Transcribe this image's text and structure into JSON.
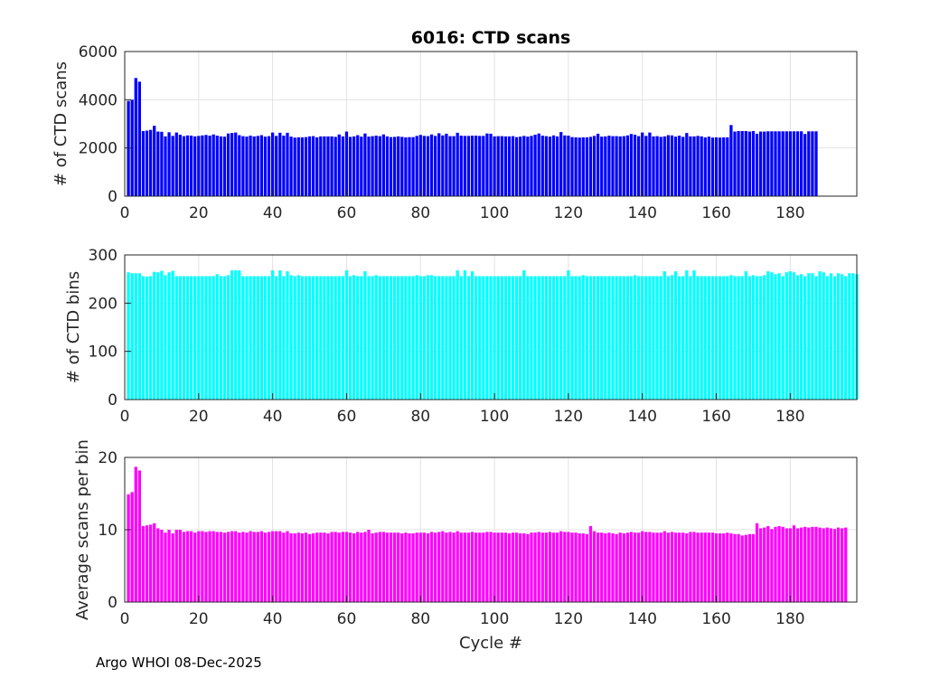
{
  "figure": {
    "title": "6016: CTD scans",
    "footer": "Argo WHOI 08-Dec-2025"
  },
  "chart_data": [
    {
      "type": "bar",
      "name": "ctd-scans",
      "title": "6016: CTD scans",
      "xlabel": "",
      "ylabel": "# of CTD scans",
      "color": "#0000ff",
      "xlim": [
        0,
        198
      ],
      "ylim": [
        0,
        6000
      ],
      "xticks": [
        0,
        20,
        40,
        60,
        80,
        100,
        120,
        140,
        160,
        180
      ],
      "yticks": [
        0,
        2000,
        4000,
        6000
      ],
      "grid": true,
      "x_start": 1,
      "values": [
        3950,
        4000,
        4900,
        4750,
        2700,
        2720,
        2750,
        2920,
        2680,
        2670,
        2480,
        2650,
        2500,
        2640,
        2550,
        2490,
        2520,
        2510,
        2480,
        2500,
        2520,
        2540,
        2510,
        2560,
        2510,
        2480,
        2470,
        2600,
        2620,
        2640,
        2530,
        2490,
        2470,
        2510,
        2480,
        2500,
        2530,
        2470,
        2490,
        2640,
        2500,
        2630,
        2510,
        2630,
        2470,
        2430,
        2440,
        2440,
        2450,
        2480,
        2490,
        2440,
        2480,
        2480,
        2480,
        2480,
        2460,
        2560,
        2480,
        2680,
        2460,
        2480,
        2530,
        2470,
        2600,
        2470,
        2490,
        2510,
        2490,
        2560,
        2480,
        2450,
        2460,
        2480,
        2460,
        2440,
        2450,
        2450,
        2500,
        2540,
        2500,
        2490,
        2560,
        2500,
        2610,
        2520,
        2590,
        2490,
        2490,
        2630,
        2510,
        2500,
        2500,
        2510,
        2510,
        2500,
        2500,
        2600,
        2590,
        2480,
        2490,
        2490,
        2480,
        2480,
        2490,
        2450,
        2470,
        2500,
        2470,
        2500,
        2550,
        2600,
        2510,
        2490,
        2470,
        2520,
        2480,
        2660,
        2520,
        2510,
        2450,
        2440,
        2430,
        2440,
        2440,
        2460,
        2500,
        2590,
        2470,
        2480,
        2510,
        2490,
        2490,
        2480,
        2490,
        2520,
        2580,
        2550,
        2490,
        2640,
        2500,
        2640,
        2480,
        2490,
        2460,
        2480,
        2530,
        2520,
        2470,
        2510,
        2460,
        2620,
        2480,
        2480,
        2500,
        2480,
        2440,
        2470,
        2430,
        2440,
        2430,
        2440,
        2440,
        2950,
        2680,
        2700,
        2700,
        2700,
        2680,
        2700,
        2590,
        2680,
        2680,
        2690,
        2690,
        2690,
        2690,
        2690,
        2690,
        2690,
        2690,
        2690,
        2690,
        2580,
        2690,
        2690,
        2690
      ]
    },
    {
      "type": "bar",
      "name": "ctd-bins",
      "title": "",
      "xlabel": "",
      "ylabel": "# of CTD bins",
      "color": "#00ffff",
      "xlim": [
        0,
        198
      ],
      "ylim": [
        0,
        300
      ],
      "xticks": [
        0,
        20,
        40,
        60,
        80,
        100,
        120,
        140,
        160,
        180
      ],
      "yticks": [
        0,
        100,
        200,
        300
      ],
      "grid": true,
      "x_start": 1,
      "values": [
        264,
        262,
        262,
        262,
        256,
        255,
        256,
        265,
        264,
        267,
        258,
        264,
        267,
        256,
        256,
        256,
        256,
        256,
        256,
        256,
        256,
        256,
        256,
        256,
        260,
        256,
        256,
        258,
        268,
        268,
        268,
        256,
        256,
        256,
        256,
        256,
        256,
        256,
        256,
        268,
        256,
        268,
        256,
        266,
        258,
        256,
        258,
        256,
        256,
        256,
        256,
        256,
        256,
        256,
        256,
        256,
        256,
        256,
        256,
        268,
        256,
        258,
        256,
        256,
        266,
        256,
        256,
        258,
        256,
        256,
        256,
        256,
        256,
        256,
        256,
        256,
        256,
        256,
        258,
        256,
        256,
        258,
        258,
        256,
        256,
        256,
        256,
        256,
        256,
        268,
        256,
        268,
        256,
        266,
        256,
        256,
        256,
        256,
        256,
        256,
        256,
        256,
        256,
        256,
        256,
        256,
        256,
        268,
        256,
        256,
        256,
        256,
        256,
        256,
        256,
        256,
        256,
        256,
        256,
        268,
        256,
        256,
        256,
        258,
        256,
        256,
        256,
        256,
        256,
        256,
        256,
        256,
        256,
        256,
        256,
        256,
        256,
        258,
        256,
        256,
        256,
        256,
        256,
        256,
        256,
        266,
        256,
        258,
        266,
        256,
        256,
        268,
        256,
        268,
        256,
        256,
        256,
        256,
        256,
        256,
        256,
        256,
        256,
        258,
        256,
        256,
        256,
        266,
        256,
        258,
        256,
        256,
        258,
        266,
        264,
        260,
        262,
        256,
        264,
        266,
        264,
        258,
        260,
        256,
        262,
        262,
        256,
        266,
        264,
        256,
        262,
        256,
        262,
        260,
        256,
        262,
        262,
        260
      ]
    },
    {
      "type": "bar",
      "name": "avg-scans-per-bin",
      "title": "",
      "xlabel": "Cycle #",
      "ylabel": "Average scans per bin",
      "color": "#ff00ff",
      "xlim": [
        0,
        198
      ],
      "ylim": [
        0,
        20
      ],
      "xticks": [
        0,
        20,
        40,
        60,
        80,
        100,
        120,
        140,
        160,
        180
      ],
      "yticks": [
        0,
        10,
        20
      ],
      "grid": true,
      "x_start": 1,
      "values": [
        14.9,
        15.2,
        18.7,
        18.2,
        10.5,
        10.6,
        10.7,
        10.9,
        10.2,
        10.0,
        9.6,
        10.0,
        9.5,
        10.0,
        10.0,
        9.7,
        9.8,
        9.8,
        9.6,
        9.8,
        9.8,
        9.7,
        9.8,
        9.8,
        9.7,
        9.7,
        9.6,
        9.7,
        9.8,
        9.8,
        9.6,
        9.7,
        9.6,
        9.8,
        9.7,
        9.7,
        9.8,
        9.6,
        9.7,
        9.8,
        9.8,
        9.8,
        9.6,
        9.8,
        9.5,
        9.5,
        9.6,
        9.5,
        9.6,
        9.4,
        9.5,
        9.6,
        9.6,
        9.6,
        9.5,
        9.7,
        9.7,
        9.6,
        9.7,
        9.7,
        9.6,
        9.5,
        9.7,
        9.6,
        9.7,
        10.0,
        9.5,
        9.6,
        9.7,
        9.7,
        9.6,
        9.6,
        9.6,
        9.6,
        9.5,
        9.6,
        9.5,
        9.5,
        9.6,
        9.6,
        9.6,
        9.5,
        9.7,
        9.6,
        9.7,
        9.8,
        9.6,
        9.7,
        9.6,
        9.8,
        9.6,
        9.6,
        9.6,
        9.7,
        9.6,
        9.6,
        9.6,
        9.7,
        9.7,
        9.6,
        9.6,
        9.6,
        9.6,
        9.5,
        9.6,
        9.6,
        9.5,
        9.5,
        9.4,
        9.6,
        9.6,
        9.7,
        9.6,
        9.6,
        9.7,
        9.6,
        9.6,
        9.8,
        9.7,
        9.7,
        9.6,
        9.6,
        9.5,
        9.5,
        9.4,
        10.5,
        9.8,
        9.6,
        9.6,
        9.5,
        9.6,
        9.5,
        9.4,
        9.6,
        9.5,
        9.6,
        9.7,
        9.6,
        9.6,
        9.8,
        9.7,
        9.7,
        9.6,
        9.6,
        9.6,
        9.8,
        9.6,
        9.7,
        9.6,
        9.6,
        9.6,
        9.5,
        9.7,
        9.7,
        9.6,
        9.6,
        9.6,
        9.6,
        9.6,
        9.5,
        9.5,
        9.5,
        9.6,
        9.5,
        9.4,
        9.4,
        9.2,
        9.3,
        9.4,
        9.4,
        10.9,
        10.2,
        10.3,
        10.5,
        10.1,
        10.4,
        10.5,
        10.4,
        10.2,
        10.2,
        10.6,
        10.2,
        10.3,
        10.4,
        10.3,
        10.4,
        10.4,
        10.3,
        10.2,
        10.3,
        10.2,
        10.1,
        10.3,
        10.2,
        10.3
      ]
    }
  ]
}
